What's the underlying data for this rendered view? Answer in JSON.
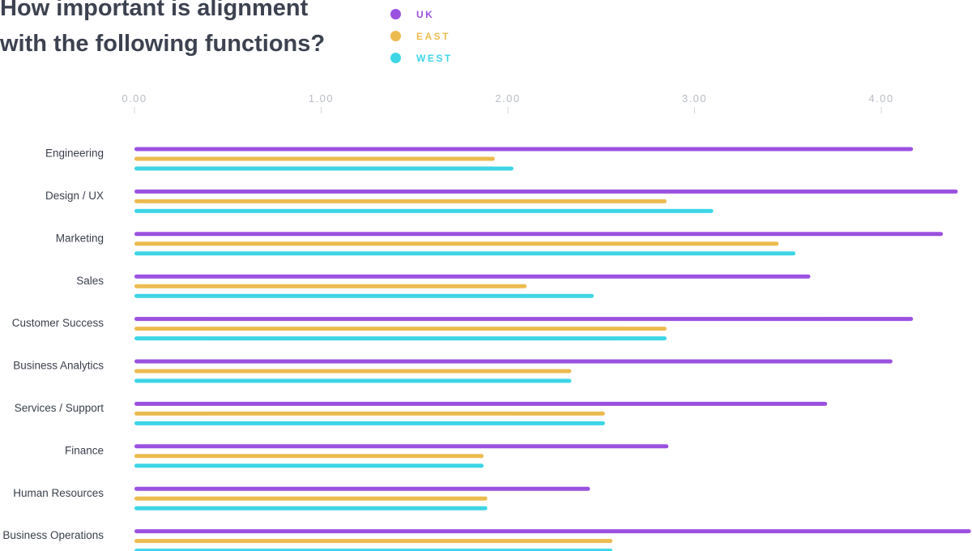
{
  "chart_data": {
    "type": "bar",
    "orientation": "horizontal",
    "title": "How important is alignment with the following functions?",
    "categories": [
      "Engineering",
      "Design / UX",
      "Marketing",
      "Sales",
      "Customer Success",
      "Business Analytics",
      "Services / Support",
      "Finance",
      "Human Resources",
      "Business Operations"
    ],
    "series": [
      {
        "name": "UK",
        "color": "#9b51e0",
        "values": [
          4.17,
          4.41,
          4.33,
          3.62,
          4.17,
          4.06,
          3.71,
          2.86,
          2.44,
          4.48
        ]
      },
      {
        "name": "EAST",
        "color": "#ecbb4f",
        "values": [
          1.93,
          2.85,
          3.45,
          2.1,
          2.85,
          2.34,
          2.52,
          1.87,
          1.89,
          2.56
        ]
      },
      {
        "name": "WEST",
        "color": "#3dd5e6",
        "values": [
          2.03,
          3.1,
          3.54,
          2.46,
          2.85,
          2.34,
          2.52,
          1.87,
          1.89,
          2.56
        ]
      }
    ],
    "xticks": [
      "0.00",
      "1.00",
      "2.00",
      "3.00",
      "4.00"
    ],
    "xlim": [
      0,
      4.48
    ],
    "grid": false,
    "legend_position": "top"
  }
}
